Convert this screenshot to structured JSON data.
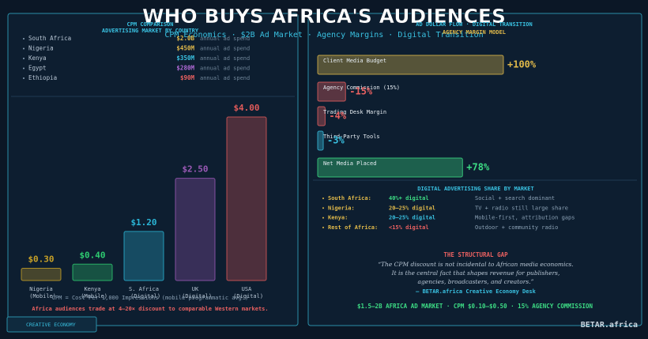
{
  "title": "WHO BUYS AFRICA'S AUDIENCES",
  "subtitle": "CPM Economics  ·  $2B Ad Market  ·  Agency Margins  ·  Digital Transition",
  "left_panel": {
    "heading": [
      "CPM COMPARISON",
      "ADVERTISING MARKET BY COUNTRY"
    ],
    "spend": [
      {
        "country": "South Africa",
        "amount": "$2.0B",
        "note": "annual ad spend",
        "color": "#e0b94a"
      },
      {
        "country": "Nigeria",
        "amount": "$450M",
        "note": "annual ad spend",
        "color": "#e0b94a"
      },
      {
        "country": "Kenya",
        "amount": "$350M",
        "note": "annual ad spend",
        "color": "#39c0e0"
      },
      {
        "country": "Egypt",
        "amount": "$280M",
        "note": "annual ad spend",
        "color": "#b06ad6"
      },
      {
        "country": "Ethiopia",
        "amount": "$90M",
        "note": "annual ad spend",
        "color": "#e86060"
      }
    ],
    "footnote": "CPM = Cost Per 1,000 Impressions (mobile programmatic avg.)",
    "warning": "Africa audiences trade at 4–20× discount to comparable Western markets.",
    "badge": "CREATIVE ECONOMY"
  },
  "right_panel": {
    "heading": [
      "AD DOLLAR FLOW · DIGITAL TRANSITION",
      "AGENCY MARGIN MODEL"
    ],
    "share_heading": "DIGITAL ADVERTISING SHARE BY MARKET",
    "share_rows": [
      {
        "market": "South Africa:",
        "share": "40%+ digital",
        "note": "Social + search dominant",
        "color": "#3ddc84"
      },
      {
        "market": "Nigeria:",
        "share": "20–25% digital",
        "note": "TV + radio still large share",
        "color": "#e0b94a"
      },
      {
        "market": "Kenya:",
        "share": "20–25% digital",
        "note": "Mobile-first, attribution gaps",
        "color": "#39c0e0"
      },
      {
        "market": "Rest of Africa:",
        "share": "<15% digital",
        "note": "Outdoor + community radio",
        "color": "#e86060"
      }
    ],
    "gap_heading": "THE STRUCTURAL GAP",
    "quote": [
      "“The CPM discount is not incidental to African media economics.",
      "It is the central fact that shapes revenue for publishers,",
      "agencies, broadcasters, and creators.”"
    ],
    "attribution": "— BETAR.africa Creative Economy Desk",
    "footer": "$1.5–2B AFRICA AD MARKET · CPM $0.10–$0.50 · 15% AGENCY COMMISSION"
  },
  "brand": "BETAR.africa",
  "chart_data": [
    {
      "type": "bar",
      "categories": [
        "Nigeria (Mobile)",
        "Kenya (Mobile)",
        "S. Africa (Digital)",
        "UK (Digital)",
        "USA (Digital)"
      ],
      "values": [
        0.3,
        0.4,
        1.2,
        2.5,
        4.0
      ],
      "value_labels": [
        "$0.30",
        "$0.40",
        "$1.20",
        "$2.50",
        "$4.00"
      ],
      "colors": [
        "#c9a227",
        "#2ecc71",
        "#2ab5d6",
        "#9b59b6",
        "#e05a5a"
      ],
      "ylim": [
        0,
        4
      ]
    },
    {
      "type": "hbar",
      "categories": [
        "Client Media Budget",
        "Agency Commission (15%)",
        "Trading Desk Margin",
        "Third-Party Tools",
        "Net Media Placed"
      ],
      "values": [
        100,
        -15,
        -4,
        -3,
        78
      ],
      "value_labels": [
        "+100%",
        "-15%",
        "-4%",
        "-3%",
        "+78%"
      ],
      "colors": [
        "#e0b94a",
        "#e86060",
        "#e86060",
        "#39c0e0",
        "#3ddc84"
      ],
      "xlim": [
        0,
        100
      ]
    }
  ]
}
